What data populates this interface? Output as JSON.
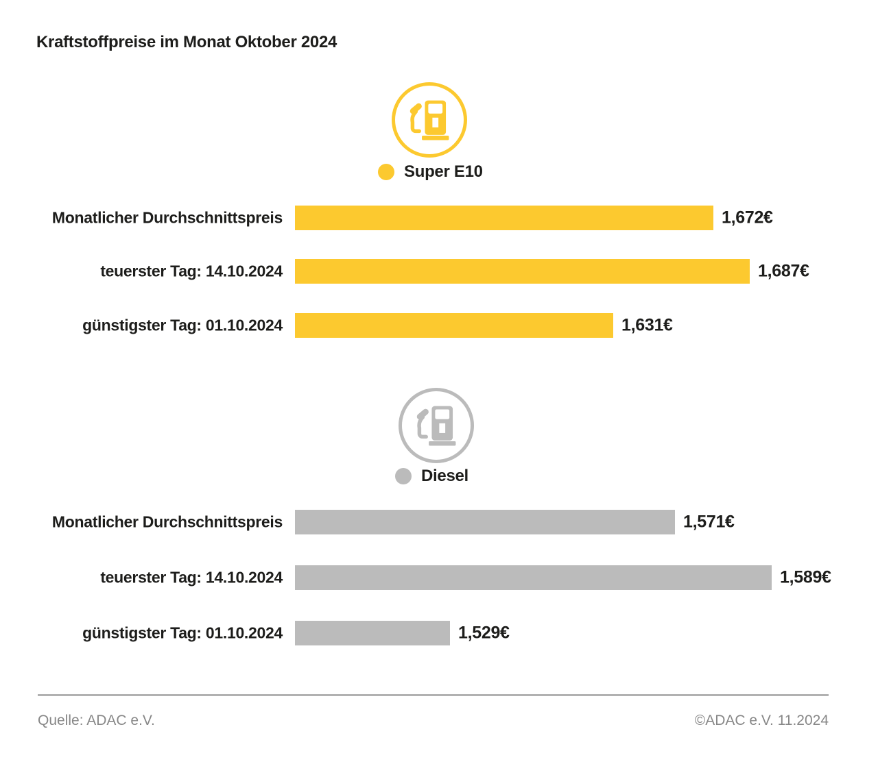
{
  "title": "Kraftstoffpreise im Monat Oktober 2024",
  "colors": {
    "super_e10": "#FCC92F",
    "diesel": "#BBBBBB",
    "text": "#1D1D1B",
    "footer_text": "#878787",
    "divider": "#B1B1B1"
  },
  "footer": {
    "source": "Quelle: ADAC e.V.",
    "copyright": "©ADAC e.V. 11.2024"
  },
  "chart_data": {
    "type": "bar",
    "title": "Kraftstoffpreise im Monat Oktober 2024",
    "orientation": "horizontal",
    "baseline_value": 1.5,
    "unit": "€",
    "categories": [
      "Monatlicher Durchschnittspreis",
      "teuerster Tag: 14.10.2024",
      "günstigster Tag: 01.10.2024"
    ],
    "sections": [
      {
        "fuel": "Super E10",
        "icon": "fuel-pump-icon",
        "color": "#FCC92F",
        "categories": [
          "Monatlicher Durchschnittspreis",
          "teuerster Tag: 14.10.2024",
          "günstigster Tag: 01.10.2024"
        ],
        "values": [
          1.672,
          1.687,
          1.631
        ],
        "value_labels": [
          "1,672€",
          "1,687€",
          "1,631€"
        ]
      },
      {
        "fuel": "Diesel",
        "icon": "fuel-pump-icon",
        "color": "#BBBBBB",
        "categories": [
          "Monatlicher Durchschnittspreis",
          "teuerster Tag: 14.10.2024",
          "günstigster Tag: 01.10.2024"
        ],
        "values": [
          1.571,
          1.589,
          1.529
        ],
        "value_labels": [
          "1,571€",
          "1,589€",
          "1,529€"
        ]
      }
    ]
  }
}
